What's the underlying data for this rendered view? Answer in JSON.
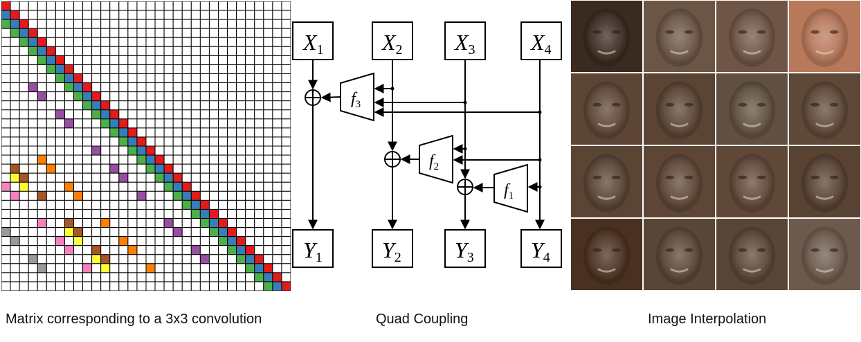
{
  "matrix": {
    "size": 32,
    "colors": {
      "red": "#e41a1c",
      "blue": "#377eb8",
      "green": "#4daf4a",
      "purple": "#984ea3",
      "orange": "#ff7f00",
      "yellow": "#ffff33",
      "brown": "#a65628",
      "pink": "#f781bf",
      "gray": "#999999"
    }
  },
  "coupling": {
    "inputs": [
      {
        "base": "X",
        "sub": "1"
      },
      {
        "base": "X",
        "sub": "2"
      },
      {
        "base": "X",
        "sub": "3"
      },
      {
        "base": "X",
        "sub": "4"
      }
    ],
    "outputs": [
      {
        "base": "Y",
        "sub": "1"
      },
      {
        "base": "Y",
        "sub": "2"
      },
      {
        "base": "Y",
        "sub": "3"
      },
      {
        "base": "Y",
        "sub": "4"
      }
    ],
    "functions": [
      {
        "base": "f",
        "sub": "3"
      },
      {
        "base": "f",
        "sub": "2"
      },
      {
        "base": "f",
        "sub": "1"
      }
    ]
  },
  "faces": {
    "rows": 4,
    "cols": 4,
    "tones": [
      [
        "#3a2a20",
        "#6b5545",
        "#6e5546",
        "#b8785a"
      ],
      [
        "#5d4536",
        "#5a4434",
        "#615040",
        "#5e4838"
      ],
      [
        "#5a4434",
        "#5e4636",
        "#604838",
        "#584232"
      ],
      [
        "#4a3020",
        "#5a4636",
        "#5a4636",
        "#6d5a4c"
      ]
    ]
  },
  "captions": {
    "matrix": "Matrix corresponding to a 3x3 convolution",
    "coupling": "Quad Coupling",
    "interpolation": "Image Interpolation"
  }
}
